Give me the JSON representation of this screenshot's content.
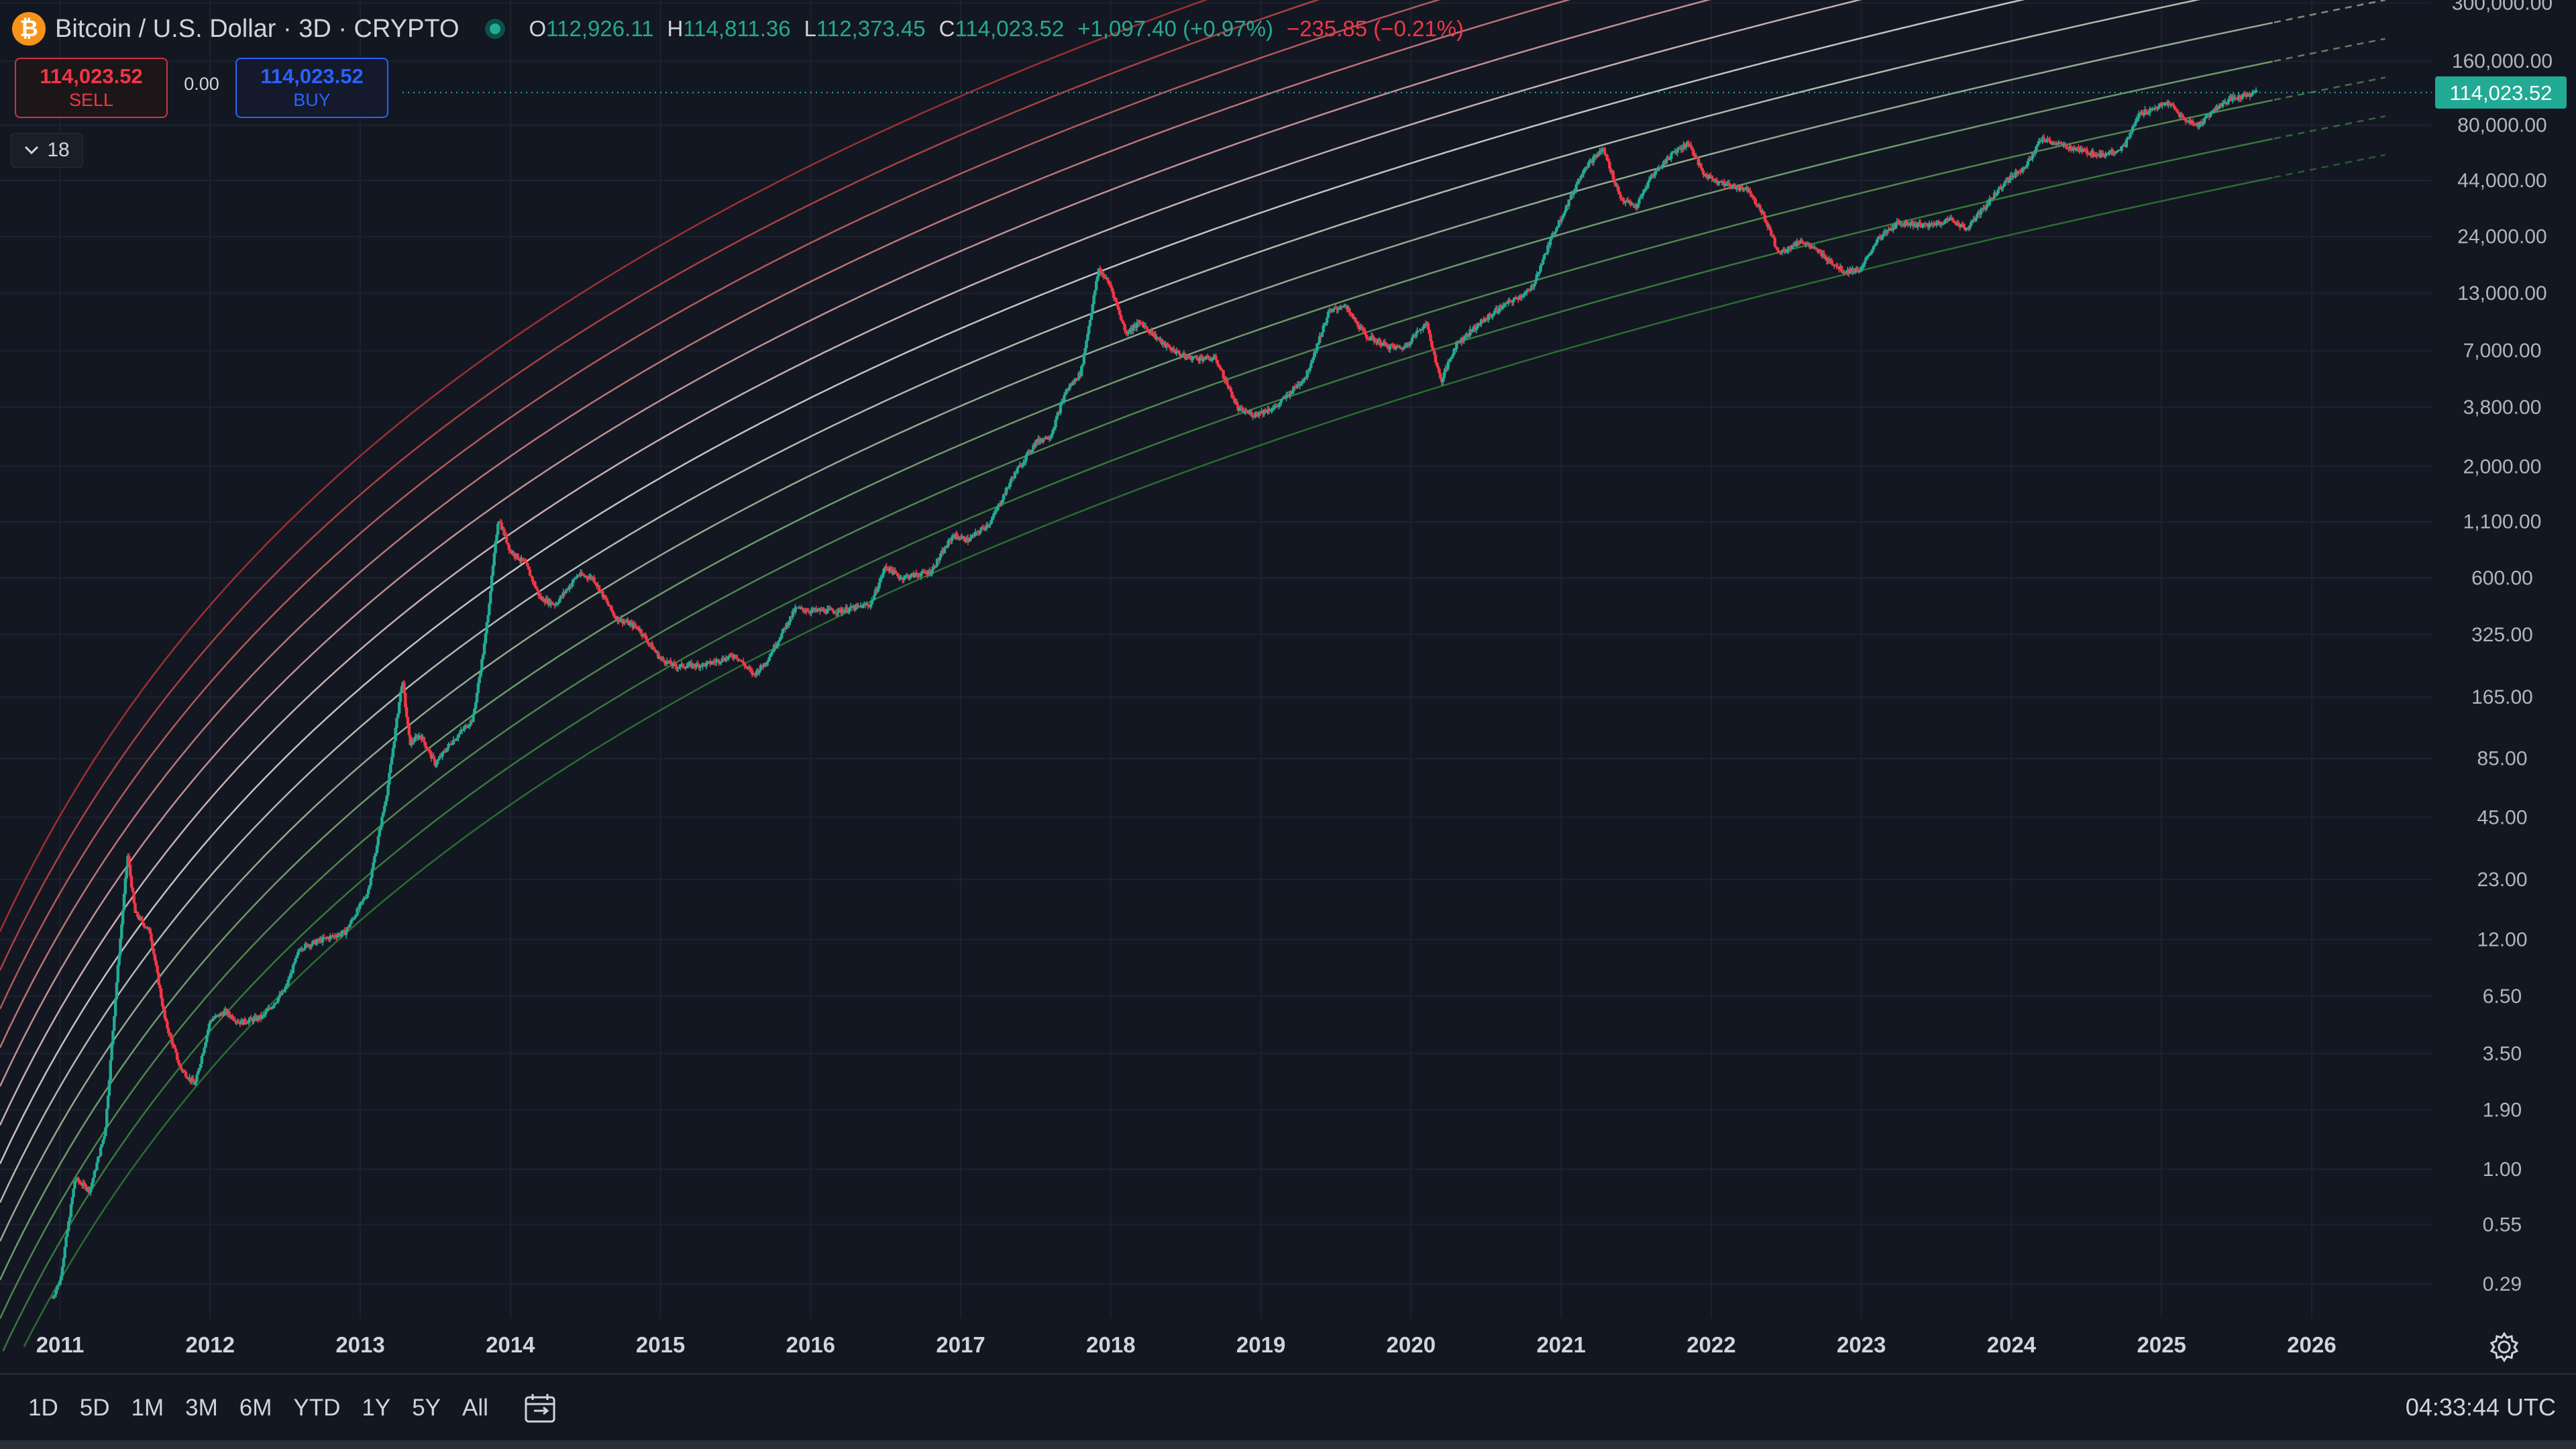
{
  "header": {
    "symbol_icon": "bitcoin-icon",
    "symbol_glyph": "₿",
    "title": "Bitcoin / U.S. Dollar · 3D · CRYPTO",
    "status_icon": "market-status-icon",
    "ohlc": {
      "o_label": "O",
      "o_value": "112,926.11",
      "h_label": "H",
      "h_value": "114,811.36",
      "l_label": "L",
      "l_value": "112,373.45",
      "c_label": "C",
      "c_value": "114,023.52",
      "change": "+1,097.40 (+0.97%)",
      "change2": "−235.85 (−0.21%)"
    }
  },
  "trade": {
    "sell_price": "114,023.52",
    "sell_label": "SELL",
    "spread": "0.00",
    "buy_price": "114,023.52",
    "buy_label": "BUY"
  },
  "indicator_toggle": {
    "icon": "chevron-down-icon",
    "count": "18"
  },
  "bottom_bar": {
    "ranges": [
      "1D",
      "5D",
      "1M",
      "3M",
      "6M",
      "YTD",
      "1Y",
      "5Y",
      "All"
    ],
    "calendar_icon": "calendar-range-icon",
    "clock": "04:33:44 UTC",
    "settings_icon": "gear-icon"
  },
  "colors": {
    "background": "#131722",
    "up": "#22ab94",
    "down": "#f23645",
    "last_price": "#22ab94",
    "grid": "#1e2230"
  },
  "chart_data": {
    "type": "candlestick",
    "symbol": "Bitcoin / U.S. Dollar",
    "interval": "3D",
    "scale": "log",
    "last_price": 114023.52,
    "last_price_label": "114,023.52",
    "y_ticks": [
      {
        "v": 300000,
        "l": "300,000.00"
      },
      {
        "v": 160000,
        "l": "160,000.00"
      },
      {
        "v": 80000,
        "l": "80,000.00"
      },
      {
        "v": 44000,
        "l": "44,000.00"
      },
      {
        "v": 24000,
        "l": "24,000.00"
      },
      {
        "v": 13000,
        "l": "13,000.00"
      },
      {
        "v": 7000,
        "l": "7,000.00"
      },
      {
        "v": 3800,
        "l": "3,800.00"
      },
      {
        "v": 2000,
        "l": "2,000.00"
      },
      {
        "v": 1100,
        "l": "1,100.00"
      },
      {
        "v": 600,
        "l": "600.00"
      },
      {
        "v": 325,
        "l": "325.00"
      },
      {
        "v": 165,
        "l": "165.00"
      },
      {
        "v": 85,
        "l": "85.00"
      },
      {
        "v": 45,
        "l": "45.00"
      },
      {
        "v": 23,
        "l": "23.00"
      },
      {
        "v": 12,
        "l": "12.00"
      },
      {
        "v": 6.5,
        "l": "6.50"
      },
      {
        "v": 3.5,
        "l": "3.50"
      },
      {
        "v": 1.9,
        "l": "1.90"
      },
      {
        "v": 1,
        "l": "1.00"
      },
      {
        "v": 0.55,
        "l": "0.55"
      },
      {
        "v": 0.29,
        "l": "0.29"
      }
    ],
    "x_ticks": [
      "2011",
      "2012",
      "2013",
      "2014",
      "2015",
      "2016",
      "2017",
      "2018",
      "2019",
      "2020",
      "2021",
      "2022",
      "2023",
      "2024",
      "2025",
      "2026"
    ],
    "x_range": [
      2010.6,
      2026.8
    ],
    "y_range": [
      0.2,
      310000
    ],
    "price_path": [
      [
        2010.95,
        0.25
      ],
      [
        2011.0,
        0.3
      ],
      [
        2011.1,
        0.9
      ],
      [
        2011.2,
        0.8
      ],
      [
        2011.3,
        1.5
      ],
      [
        2011.38,
        8
      ],
      [
        2011.45,
        30
      ],
      [
        2011.5,
        16
      ],
      [
        2011.6,
        13
      ],
      [
        2011.7,
        5
      ],
      [
        2011.8,
        3
      ],
      [
        2011.9,
        2.5
      ],
      [
        2012.0,
        5
      ],
      [
        2012.1,
        5.5
      ],
      [
        2012.2,
        4.9
      ],
      [
        2012.35,
        5.2
      ],
      [
        2012.5,
        7
      ],
      [
        2012.6,
        11
      ],
      [
        2012.75,
        12
      ],
      [
        2012.9,
        13
      ],
      [
        2013.05,
        20
      ],
      [
        2013.18,
        60
      ],
      [
        2013.28,
        200
      ],
      [
        2013.33,
        100
      ],
      [
        2013.4,
        110
      ],
      [
        2013.5,
        80
      ],
      [
        2013.6,
        100
      ],
      [
        2013.75,
        130
      ],
      [
        2013.83,
        300
      ],
      [
        2013.92,
        1150
      ],
      [
        2014.0,
        800
      ],
      [
        2014.1,
        700
      ],
      [
        2014.2,
        480
      ],
      [
        2014.3,
        450
      ],
      [
        2014.45,
        620
      ],
      [
        2014.55,
        600
      ],
      [
        2014.7,
        390
      ],
      [
        2014.85,
        350
      ],
      [
        2015.0,
        250
      ],
      [
        2015.1,
        230
      ],
      [
        2015.3,
        235
      ],
      [
        2015.5,
        260
      ],
      [
        2015.62,
        210
      ],
      [
        2015.7,
        240
      ],
      [
        2015.8,
        320
      ],
      [
        2015.9,
        430
      ],
      [
        2016.0,
        420
      ],
      [
        2016.2,
        420
      ],
      [
        2016.4,
        450
      ],
      [
        2016.5,
        680
      ],
      [
        2016.6,
        600
      ],
      [
        2016.8,
        640
      ],
      [
        2016.95,
        950
      ],
      [
        2017.05,
        900
      ],
      [
        2017.2,
        1100
      ],
      [
        2017.35,
        1800
      ],
      [
        2017.5,
        2600
      ],
      [
        2017.6,
        2800
      ],
      [
        2017.7,
        4500
      ],
      [
        2017.8,
        5500
      ],
      [
        2017.92,
        17000
      ],
      [
        2018.0,
        14000
      ],
      [
        2018.1,
        8500
      ],
      [
        2018.2,
        9500
      ],
      [
        2018.35,
        7500
      ],
      [
        2018.5,
        6500
      ],
      [
        2018.7,
        6400
      ],
      [
        2018.85,
        3700
      ],
      [
        2018.95,
        3500
      ],
      [
        2019.1,
        3800
      ],
      [
        2019.3,
        5300
      ],
      [
        2019.45,
        10500
      ],
      [
        2019.55,
        11500
      ],
      [
        2019.7,
        8200
      ],
      [
        2019.85,
        7300
      ],
      [
        2019.95,
        7200
      ],
      [
        2020.1,
        9500
      ],
      [
        2020.2,
        5000
      ],
      [
        2020.3,
        7500
      ],
      [
        2020.45,
        9300
      ],
      [
        2020.6,
        11200
      ],
      [
        2020.8,
        13500
      ],
      [
        2020.95,
        25000
      ],
      [
        2021.05,
        35000
      ],
      [
        2021.15,
        50000
      ],
      [
        2021.28,
        62000
      ],
      [
        2021.4,
        36000
      ],
      [
        2021.5,
        33000
      ],
      [
        2021.6,
        46000
      ],
      [
        2021.75,
        60000
      ],
      [
        2021.85,
        66000
      ],
      [
        2021.95,
        47000
      ],
      [
        2022.1,
        42000
      ],
      [
        2022.25,
        40000
      ],
      [
        2022.35,
        30000
      ],
      [
        2022.45,
        20000
      ],
      [
        2022.6,
        23000
      ],
      [
        2022.75,
        19500
      ],
      [
        2022.88,
        16500
      ],
      [
        2023.0,
        16800
      ],
      [
        2023.1,
        23000
      ],
      [
        2023.25,
        28000
      ],
      [
        2023.45,
        27000
      ],
      [
        2023.6,
        29000
      ],
      [
        2023.7,
        26000
      ],
      [
        2023.85,
        35000
      ],
      [
        2023.95,
        43000
      ],
      [
        2024.1,
        52000
      ],
      [
        2024.2,
        69000
      ],
      [
        2024.35,
        64000
      ],
      [
        2024.5,
        60000
      ],
      [
        2024.6,
        58000
      ],
      [
        2024.75,
        63000
      ],
      [
        2024.85,
        90000
      ],
      [
        2024.95,
        96000
      ],
      [
        2025.05,
        102000
      ],
      [
        2025.15,
        85000
      ],
      [
        2025.25,
        80000
      ],
      [
        2025.35,
        95000
      ],
      [
        2025.45,
        105000
      ],
      [
        2025.55,
        110000
      ],
      [
        2025.63,
        114023
      ]
    ],
    "bands": {
      "count": 13,
      "baseline_anchor": [
        [
          2011.6,
          1.1
        ],
        [
          2014.0,
          70
        ],
        [
          2017.2,
          750
        ],
        [
          2020.0,
          4700
        ],
        [
          2023.0,
          16000
        ],
        [
          2025.6,
          40000
        ]
      ],
      "step_factor": 1.52,
      "colors": [
        "#2e7d32",
        "#3d8b3f",
        "#5a9a56",
        "#7fb079",
        "#a7c6a2",
        "#c9d9c6",
        "#e0e0e0",
        "#e8c9c9",
        "#e0a5a5",
        "#d98585",
        "#cf6565",
        "#c44949",
        "#b53535"
      ],
      "projection_start": 2025.75,
      "projection_end": 2026.5
    }
  }
}
